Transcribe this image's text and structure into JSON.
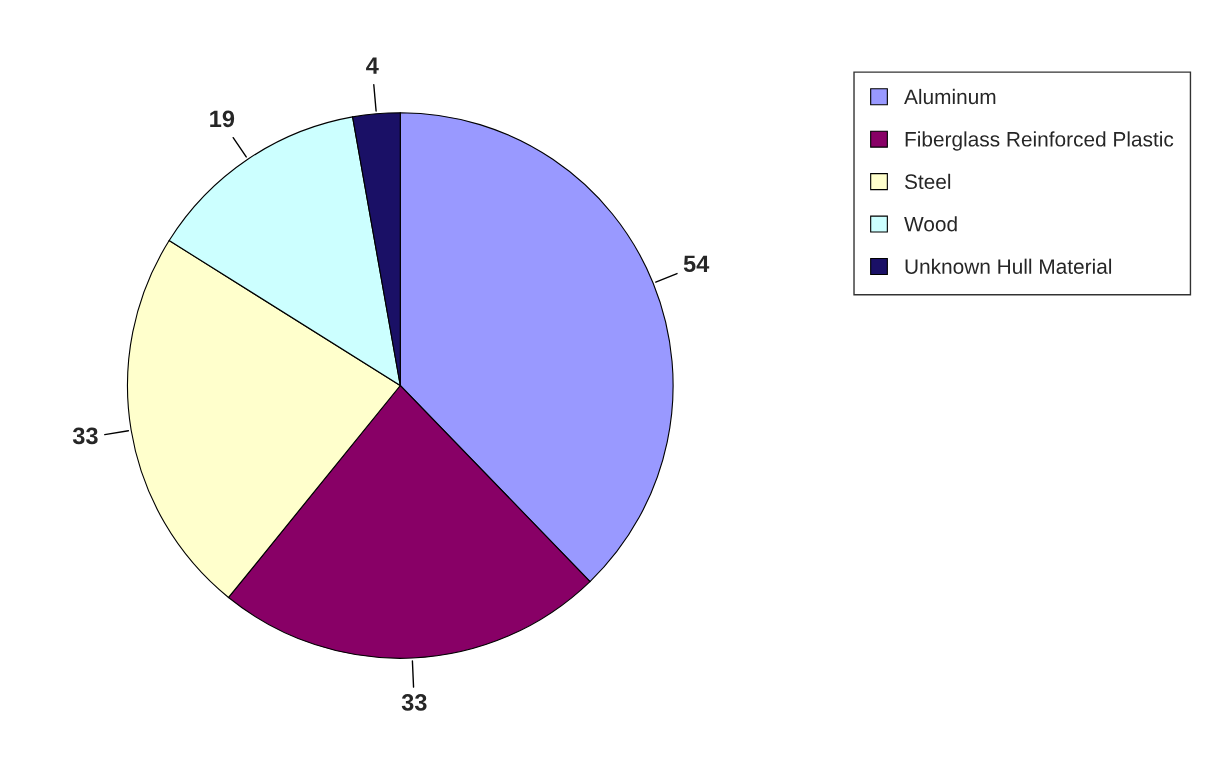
{
  "chart_data": {
    "type": "pie",
    "categories": [
      "Aluminum",
      "Fiberglass Reinforced Plastic",
      "Steel",
      "Wood",
      "Unknown Hull Material"
    ],
    "values": [
      54,
      33,
      33,
      19,
      4
    ],
    "colors": [
      "#9999ff",
      "#880066",
      "#ffffcc",
      "#ccffff",
      "#1a1066"
    ],
    "data_labels": true,
    "legend": "top right"
  }
}
